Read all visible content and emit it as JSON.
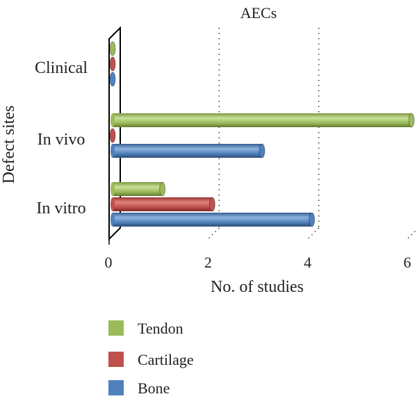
{
  "chart_data": {
    "type": "bar",
    "orientation": "horizontal",
    "style": "3d-cylinder",
    "title": "AECs",
    "xlabel": "No. of studies",
    "ylabel": "Defect sites",
    "categories": [
      "Clinical",
      "In vivo",
      "In vitro"
    ],
    "series": [
      {
        "name": "Tendon",
        "values": [
          0,
          6,
          1
        ],
        "color": "#9bbb59"
      },
      {
        "name": "Cartilage",
        "values": [
          0,
          0,
          2
        ],
        "color": "#c0504d"
      },
      {
        "name": "Bone",
        "values": [
          0,
          3,
          4
        ],
        "color": "#4f81bd"
      }
    ],
    "xlim": [
      0,
      6
    ],
    "xticks": [
      0,
      2,
      4,
      6
    ],
    "grid": "vertical-dotted",
    "legend_position": "bottom-left"
  }
}
